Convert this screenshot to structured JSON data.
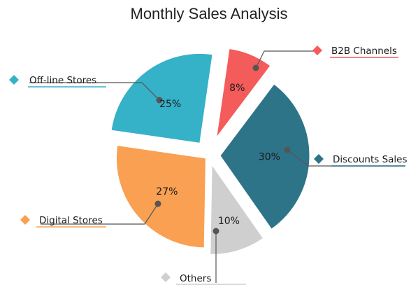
{
  "chart_data": {
    "type": "pie",
    "title": "Monthly Sales Analysis",
    "slices": [
      {
        "label": "Discounts Sales",
        "value": 30,
        "percent_label": "30%",
        "color": "#2e7489"
      },
      {
        "label": "Others",
        "value": 10,
        "percent_label": "10%",
        "color": "#cfcfcf"
      },
      {
        "label": "Digital Stores",
        "value": 27,
        "percent_label": "27%",
        "color": "#f9a052"
      },
      {
        "label": "Off-line Stores",
        "value": 25,
        "percent_label": "25%",
        "color": "#35b1c8"
      },
      {
        "label": "B2B Channels",
        "value": 8,
        "percent_label": "8%",
        "color": "#f45b5b"
      }
    ]
  }
}
